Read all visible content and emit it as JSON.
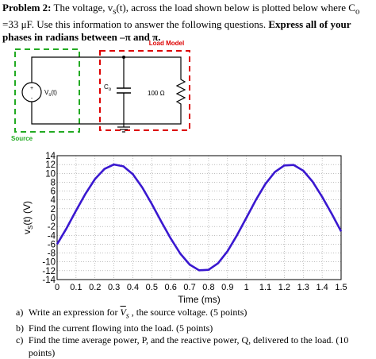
{
  "intro": {
    "problem_label": "Problem 2:",
    "text_1": " The voltage, v",
    "sub_s": "s",
    "text_2": "(t), across the load shown below is plotted below where C",
    "sub_o": "o",
    "text_3": " =33  μF.  Use this information to answer the following questions.  ",
    "emphasis": "Express all of your phases in radians between –π and π."
  },
  "circuit": {
    "load_model_label": "Load Model",
    "source_label": "Source",
    "source_name": "V",
    "source_sub": "s",
    "source_arg": "(t)",
    "plus_sign": "+",
    "minus_sign": "-",
    "cap_name": "C",
    "cap_sub": "o",
    "resistor_label": "100 Ω",
    "colors": {
      "source_box": "#22aa22",
      "load_box": "#dd0000",
      "label": "#dd0000",
      "source_label": "#22aa22",
      "wire": "#000000"
    }
  },
  "chart_data": {
    "type": "line",
    "xlabel": "Time (ms)",
    "ylabel": "v",
    "ylabel_sub": "S",
    "ylabel_tail": "(t) (V)",
    "xlim": [
      0,
      1.5
    ],
    "ylim": [
      -14,
      14
    ],
    "x_ticks": [
      "0",
      "0.1",
      "0.2",
      "0.3",
      "0.4",
      "0.5",
      "0.6",
      "0.7",
      "0.8",
      "0.9",
      "1",
      "1.1",
      "1.2",
      "1.3",
      "1.4",
      "1.5"
    ],
    "y_ticks": [
      "14",
      "12",
      "10",
      "8",
      "6",
      "4",
      "2",
      "0",
      "-2",
      "-4",
      "-6",
      "-8",
      "-10",
      "-12",
      "-14"
    ],
    "grid": true,
    "series": [
      {
        "color": "#3a18d0",
        "x": [
          0,
          0.05,
          0.1,
          0.15,
          0.2,
          0.25,
          0.3,
          0.35,
          0.4,
          0.45,
          0.5,
          0.55,
          0.6,
          0.65,
          0.7,
          0.75,
          0.8,
          0.85,
          0.9,
          0.95,
          1.0,
          1.05,
          1.1,
          1.15,
          1.2,
          1.25,
          1.3,
          1.35,
          1.4,
          1.45,
          1.5
        ],
        "y": [
          -6.0,
          -2.4,
          1.6,
          5.4,
          8.7,
          11.0,
          12.0,
          11.6,
          9.8,
          6.8,
          3.1,
          -0.9,
          -4.7,
          -8.1,
          -10.6,
          -11.9,
          -11.8,
          -10.3,
          -7.6,
          -4.0,
          0.0,
          4.0,
          7.6,
          10.3,
          11.8,
          11.9,
          10.6,
          8.1,
          4.7,
          0.9,
          -3.1
        ]
      }
    ]
  },
  "questions": [
    {
      "label": "a)",
      "pre": "Write an expression for ",
      "var": "V",
      "var_sub": "s",
      "post": " , the source voltage. (5 points)"
    },
    {
      "label": "b)",
      "text": "Find the current flowing into the load. (5 points)"
    },
    {
      "label": "c)",
      "text": "Find the time average power, P, and the reactive power, Q, delivered to the load. (10 points)"
    }
  ]
}
